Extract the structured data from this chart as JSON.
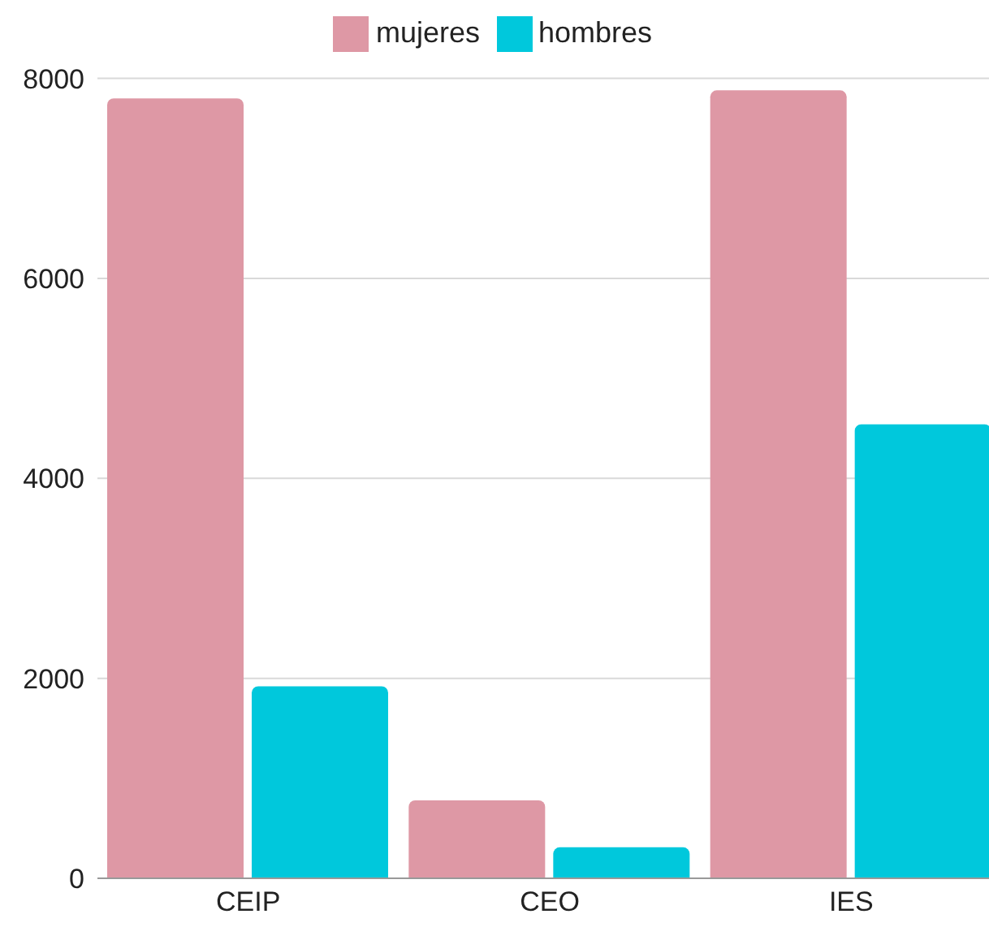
{
  "chart_data": {
    "type": "bar",
    "categories": [
      "CEIP",
      "CEO",
      "IES"
    ],
    "series": [
      {
        "name": "mujeres",
        "color": "#de98a5",
        "values": [
          7800,
          780,
          7880
        ]
      },
      {
        "name": "hombres",
        "color": "#00c8dc",
        "values": [
          1920,
          310,
          4540
        ]
      }
    ],
    "ylim": [
      0,
      8000
    ],
    "yticks": [
      0,
      2000,
      4000,
      6000,
      8000
    ],
    "grid": "y",
    "legend": "top"
  }
}
